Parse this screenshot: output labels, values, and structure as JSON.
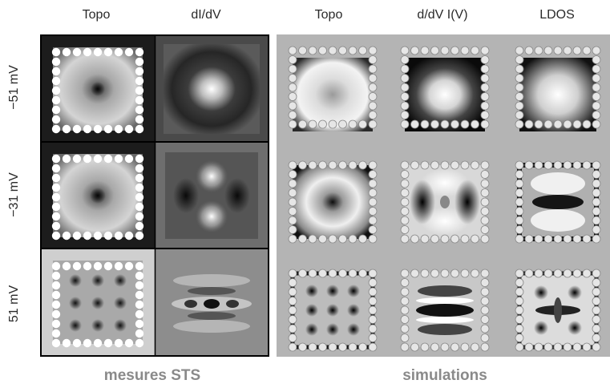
{
  "column_labels": {
    "experiment": [
      "Topo",
      "dI/dV"
    ],
    "simulation": [
      "Topo",
      "d/dV I(V)",
      "LDOS"
    ]
  },
  "row_labels": [
    "−51 mV",
    "−31 mV",
    "51 mV"
  ],
  "captions": {
    "experiment": "mesures STS",
    "simulation": "simulations"
  },
  "colors": {
    "experiment_background": "#000000",
    "simulation_background": "#b4b4b4",
    "caption": "#8a8a8a"
  }
}
